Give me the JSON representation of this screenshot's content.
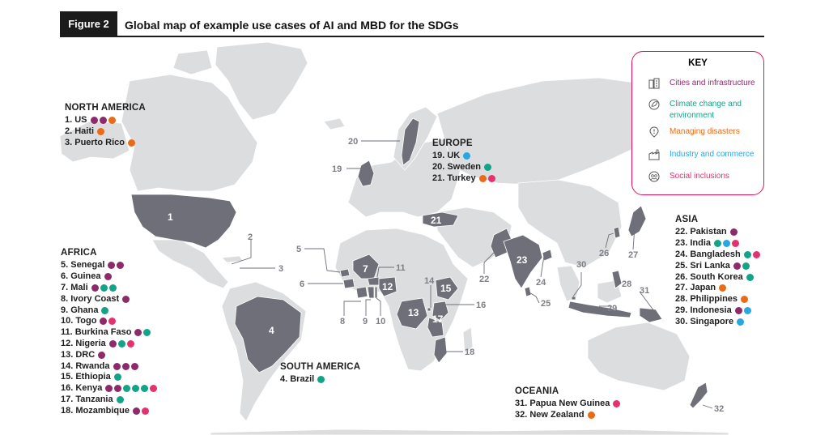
{
  "header": {
    "figure_label": "Figure 2",
    "title": "Global map of example use cases of AI and MBD for the SDGs"
  },
  "colors": {
    "cities": "#8e2a6a",
    "climate": "#13a387",
    "disasters": "#ea6b17",
    "industry": "#2aa6e0",
    "social": "#e5326f",
    "land": "#dcdddf",
    "highlight": "#6e6f78",
    "key_border": "#e0135a"
  },
  "key": {
    "title": "KEY",
    "items": [
      {
        "label": "Cities and infrastructure",
        "category": "cities",
        "icon": "building-icon"
      },
      {
        "label": "Climate change and environment",
        "category": "climate",
        "icon": "leaf-globe-icon"
      },
      {
        "label": "Managing disasters",
        "category": "disasters",
        "icon": "warning-pin-icon"
      },
      {
        "label": "Industry and commerce",
        "category": "industry",
        "icon": "factory-icon"
      },
      {
        "label": "Social inclusions",
        "category": "social",
        "icon": "people-icon"
      }
    ]
  },
  "regions": {
    "north_america": {
      "title": "NORTH AMERICA",
      "entries": [
        {
          "label": "1. US",
          "cats": [
            "cities",
            "cities",
            "disasters"
          ]
        },
        {
          "label": "2. Haiti",
          "cats": [
            "disasters"
          ]
        },
        {
          "label": "3. Puerto Rico",
          "cats": [
            "disasters"
          ]
        }
      ]
    },
    "europe": {
      "title": "EUROPE",
      "entries": [
        {
          "label": "19. UK",
          "cats": [
            "industry"
          ]
        },
        {
          "label": "20. Sweden",
          "cats": [
            "climate"
          ]
        },
        {
          "label": "21. Turkey",
          "cats": [
            "disasters",
            "social"
          ]
        }
      ]
    },
    "africa": {
      "title": "AFRICA",
      "entries": [
        {
          "label": "5. Senegal",
          "cats": [
            "cities",
            "cities"
          ]
        },
        {
          "label": "6. Guinea",
          "cats": [
            "cities"
          ]
        },
        {
          "label": "7. Mali",
          "cats": [
            "cities",
            "climate",
            "climate"
          ]
        },
        {
          "label": "8. Ivory Coast",
          "cats": [
            "cities"
          ]
        },
        {
          "label": "9. Ghana",
          "cats": [
            "climate"
          ]
        },
        {
          "label": "10. Togo",
          "cats": [
            "cities",
            "social"
          ]
        },
        {
          "label": "11. Burkina Faso",
          "cats": [
            "cities",
            "climate"
          ]
        },
        {
          "label": "12. Nigeria",
          "cats": [
            "cities",
            "climate",
            "social"
          ]
        },
        {
          "label": "13. DRC",
          "cats": [
            "cities"
          ]
        },
        {
          "label": "14. Rwanda",
          "cats": [
            "cities",
            "cities",
            "cities"
          ]
        },
        {
          "label": "15. Ethiopia",
          "cats": [
            "climate"
          ]
        },
        {
          "label": "16. Kenya",
          "cats": [
            "cities",
            "cities",
            "climate",
            "climate",
            "climate",
            "social"
          ]
        },
        {
          "label": "17. Tanzania",
          "cats": [
            "climate"
          ]
        },
        {
          "label": "18. Mozambique",
          "cats": [
            "cities",
            "social"
          ]
        }
      ]
    },
    "south_america": {
      "title": "SOUTH AMERICA",
      "entries": [
        {
          "label": "4. Brazil",
          "cats": [
            "climate"
          ]
        }
      ]
    },
    "asia": {
      "title": "ASIA",
      "entries": [
        {
          "label": "22. Pakistan",
          "cats": [
            "cities"
          ]
        },
        {
          "label": "23. India",
          "cats": [
            "climate",
            "industry",
            "social"
          ]
        },
        {
          "label": "24. Bangladesh",
          "cats": [
            "climate",
            "social"
          ]
        },
        {
          "label": "25. Sri Lanka",
          "cats": [
            "cities",
            "climate"
          ]
        },
        {
          "label": "26. South Korea",
          "cats": [
            "climate"
          ]
        },
        {
          "label": "27. Japan",
          "cats": [
            "disasters"
          ]
        },
        {
          "label": "28. Philippines",
          "cats": [
            "disasters"
          ]
        },
        {
          "label": "29. Indonesia",
          "cats": [
            "cities",
            "industry"
          ]
        },
        {
          "label": "30. Singapore",
          "cats": [
            "industry"
          ]
        }
      ]
    },
    "oceania": {
      "title": "OCEANIA",
      "entries": [
        {
          "label": "31. Papua New Guinea",
          "cats": [
            "social"
          ]
        },
        {
          "label": "32. New Zealand",
          "cats": [
            "disasters"
          ]
        }
      ]
    }
  },
  "map_numbers": [
    "1",
    "2",
    "3",
    "4",
    "5",
    "6",
    "7",
    "8",
    "9",
    "10",
    "11",
    "12",
    "13",
    "14",
    "15",
    "16",
    "17",
    "18",
    "19",
    "20",
    "21",
    "22",
    "23",
    "24",
    "25",
    "26",
    "27",
    "28",
    "29",
    "30",
    "31",
    "32"
  ]
}
